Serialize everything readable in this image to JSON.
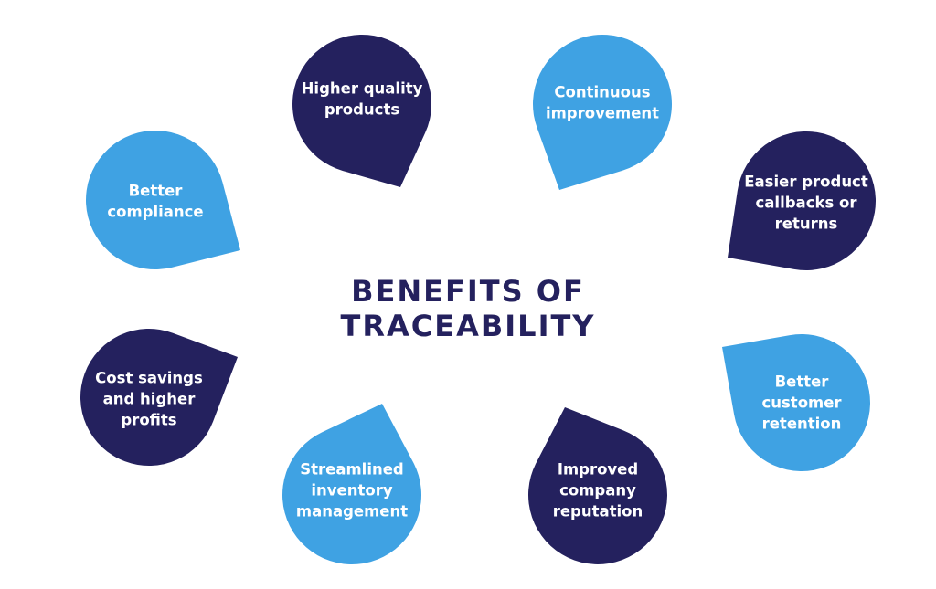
{
  "title": {
    "line1": "BENEFITS OF",
    "line2": "TRACEABILITY"
  },
  "colors": {
    "navy": "#24215e",
    "sky": "#3fa2e3",
    "text": "#ffffff"
  },
  "benefits": [
    {
      "lines": [
        "Higher quality",
        "products"
      ],
      "color": "navy"
    },
    {
      "lines": [
        "Continuous",
        "improvement"
      ],
      "color": "sky"
    },
    {
      "lines": [
        "Easier product",
        "callbacks or",
        "returns"
      ],
      "color": "navy"
    },
    {
      "lines": [
        "Better",
        "customer",
        "retention"
      ],
      "color": "sky"
    },
    {
      "lines": [
        "Improved",
        "company",
        "reputation"
      ],
      "color": "navy"
    },
    {
      "lines": [
        "Streamlined",
        "inventory",
        "management"
      ],
      "color": "sky"
    },
    {
      "lines": [
        "Cost savings",
        "and higher",
        "profits"
      ],
      "color": "navy"
    },
    {
      "lines": [
        "Better",
        "compliance"
      ],
      "color": "sky"
    }
  ]
}
